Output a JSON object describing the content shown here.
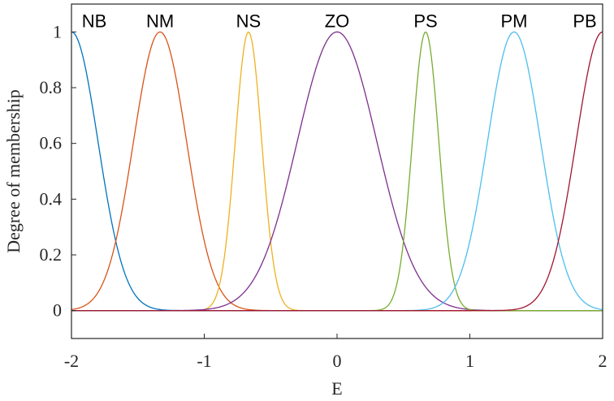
{
  "chart_data": {
    "type": "line",
    "title": "",
    "xlabel": "E",
    "ylabel": "Degree of membership",
    "xlim": [
      -2,
      2
    ],
    "ylim": [
      -0.1,
      1.1
    ],
    "xticks": [
      -2,
      -1,
      0,
      1,
      2
    ],
    "xtick_labels": [
      "-2",
      "-1",
      "0",
      "1",
      "2"
    ],
    "yticks": [
      0,
      0.2,
      0.4,
      0.6,
      0.8,
      1
    ],
    "ytick_labels": [
      "0",
      "0.2",
      "0.4",
      "0.6",
      "0.8",
      "1"
    ],
    "grid": false,
    "function": "gaussian",
    "series": [
      {
        "name": "NB",
        "center": -2.0,
        "sigma": 0.2,
        "color": "#0072BD"
      },
      {
        "name": "NM",
        "center": -1.333,
        "sigma": 0.2,
        "color": "#D95319"
      },
      {
        "name": "NS",
        "center": -0.667,
        "sigma": 0.1,
        "color": "#EDB120"
      },
      {
        "name": "ZO",
        "center": 0.0,
        "sigma": 0.3,
        "color": "#7E2F8E"
      },
      {
        "name": "PS",
        "center": 0.667,
        "sigma": 0.1,
        "color": "#77AC30"
      },
      {
        "name": "PM",
        "center": 1.333,
        "sigma": 0.2,
        "color": "#4DBEEE"
      },
      {
        "name": "PB",
        "center": 2.0,
        "sigma": 0.2,
        "color": "#A2142F"
      }
    ]
  }
}
